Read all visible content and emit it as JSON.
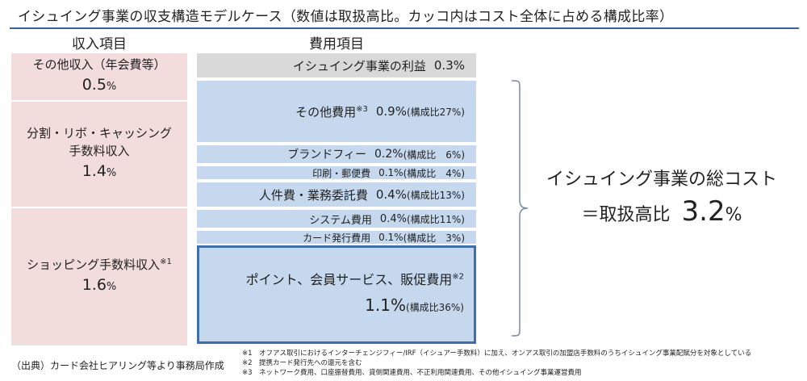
{
  "title": "イシュイング事業の収支構造モデルケース（数値は取扱高比。カッコ内はコスト全体に占める構成比率）",
  "revenue": {
    "header": "収入項目",
    "items": [
      {
        "name": "その他収入（年会費等）",
        "value": "0.5",
        "unit": "%"
      },
      {
        "name": "分割・リボ・キャッシング\n手数料収入",
        "value": "1.4",
        "unit": "%"
      },
      {
        "name": "ショッピング手数料収入",
        "note": "※1",
        "value": "1.6",
        "unit": "%"
      }
    ]
  },
  "expense": {
    "header": "費用項目",
    "items": [
      {
        "name": "イシュイング事業の利益",
        "note": "",
        "value": "0.3%",
        "share": ""
      },
      {
        "name": "その他費用",
        "note": "※3",
        "value": "0.9%",
        "share": "(構成比27%)"
      },
      {
        "name": "ブランドフィー",
        "note": "",
        "value": "0.2%",
        "share": "(構成比　6%)"
      },
      {
        "name": "印刷・郵便費",
        "note": "",
        "value": "0.1%",
        "share": "(構成比　4%)"
      },
      {
        "name": "人件費・業務委託費",
        "note": "",
        "value": "0.4%",
        "share": "(構成比13%)"
      },
      {
        "name": "システム費用",
        "note": "",
        "value": "0.4%",
        "share": "(構成比11%)"
      },
      {
        "name": "カード発行費用",
        "note": "",
        "value": "0.1%",
        "share": "(構成比　3%)"
      },
      {
        "name": "ポイント、会員サービス、販促費用",
        "note": "※2",
        "value": "1.1%",
        "share": "(構成比36%)"
      }
    ]
  },
  "total": {
    "line1": "イシュイング事業の総コスト",
    "line2": "＝取扱高比",
    "value": "3.2",
    "unit": "%"
  },
  "source": "（出典）カード会社ヒアリング等より事務局作成",
  "notes": [
    "※1　オフアス取引におけるインターチェンジフィー/IRF（イシュアー手数料）に加え、オンアス取引の加盟店手数料のうちイシュイング事業配賦分を対象としている",
    "※2　提携カード発行先への還元を含む",
    "※3　ネットワーク費用、口座振替費用、貸倒関連費用、不正利用関連費用、その他イシュイング事業運営費用"
  ],
  "colors": {
    "revenue": "#f2dcdc",
    "expense": "#c6d8ee",
    "profit": "#d9d9d9",
    "accent": "#3e6fa8"
  }
}
